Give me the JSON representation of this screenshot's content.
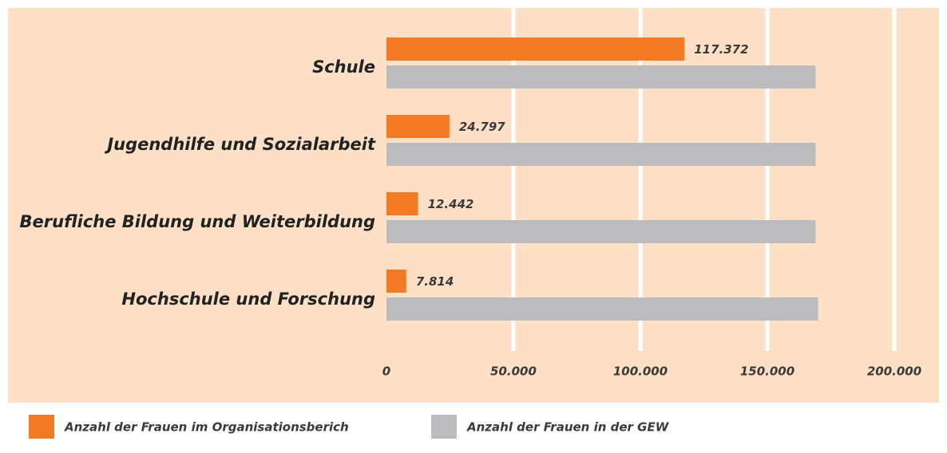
{
  "chart_data": {
    "type": "hbar",
    "categories": [
      "Schule",
      "Jugendhilfe und Sozialarbeit",
      "Berufliche Bildung und Weiterbildung",
      "Hochschule und Forschung"
    ],
    "series": [
      {
        "name": "Anzahl der Frauen im Organisationsberich",
        "color": "#f47b26",
        "values": [
          117372,
          24797,
          12442,
          7814
        ],
        "value_labels": [
          "117.372",
          "24.797",
          "12.442",
          "7.814"
        ]
      },
      {
        "name": "Anzahl der Frauen in der GEW",
        "color": "#bcbcbf",
        "values": [
          169000,
          169000,
          169000,
          170000
        ]
      }
    ],
    "xlim": [
      0,
      200000
    ],
    "xticks": [
      0,
      {
        "value": 50000,
        "label": "50.000"
      },
      {
        "value": 100000,
        "label": "100.000"
      },
      {
        "value": 150000,
        "label": "150.000"
      },
      {
        "value": 200000,
        "label": "200.000"
      }
    ],
    "grid": true
  }
}
